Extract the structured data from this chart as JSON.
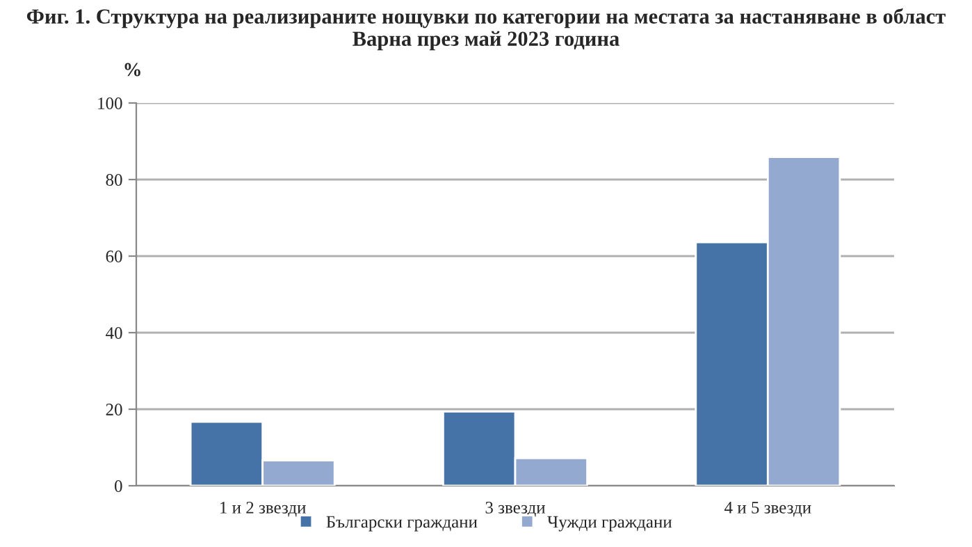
{
  "chart_data": {
    "type": "bar",
    "title": "Фиг. 1. Структура на реализираните нощувки по категории на местата за настаняване в област Варна през май 2023 година",
    "ylabel": "%",
    "categories": [
      "1 и 2 звезди",
      "3 звезди",
      "4 и 5 звезди"
    ],
    "series": [
      {
        "name": "Български граждани",
        "color": "#4573a7",
        "values": [
          16.7,
          19.4,
          63.6
        ]
      },
      {
        "name": "Чужди граждани",
        "color": "#94a9d0",
        "values": [
          6.6,
          7.2,
          85.9
        ]
      }
    ],
    "ylim": [
      0,
      100
    ],
    "yticks": [
      0,
      20,
      40,
      60,
      80,
      100
    ],
    "grid": "y",
    "legend": "bottom"
  }
}
